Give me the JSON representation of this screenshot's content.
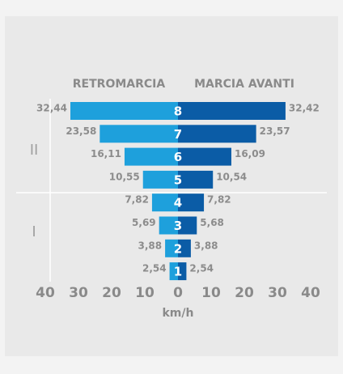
{
  "chart_data": {
    "type": "butterfly-bar",
    "categories": [
      "8",
      "7",
      "6",
      "5",
      "4",
      "3",
      "2",
      "1"
    ],
    "group_labels": [
      "II",
      "I"
    ],
    "series": [
      {
        "name": "RETROMARCIA",
        "color": "#1ea0dc",
        "values": [
          32.44,
          23.58,
          16.11,
          10.55,
          7.82,
          5.69,
          3.88,
          2.54
        ],
        "value_labels": [
          "32,44",
          "23,58",
          "16,11",
          "10,55",
          "7,82",
          "5,69",
          "3,88",
          "2,54"
        ]
      },
      {
        "name": "MARCIA AVANTI",
        "color": "#0b5ca6",
        "values": [
          32.42,
          23.57,
          16.09,
          10.54,
          7.82,
          5.68,
          3.88,
          2.54
        ],
        "value_labels": [
          "32,42",
          "23,57",
          "16,09",
          "10,54",
          "7,82",
          "5,68",
          "3,88",
          "2,54"
        ]
      }
    ],
    "xlim": [
      -40,
      40
    ],
    "xticks": [
      {
        "value": -40,
        "label": "40"
      },
      {
        "value": -30,
        "label": "30"
      },
      {
        "value": -20,
        "label": "20"
      },
      {
        "value": -10,
        "label": "10"
      },
      0,
      10,
      20,
      30,
      40
    ],
    "xlabel": "km/h"
  }
}
